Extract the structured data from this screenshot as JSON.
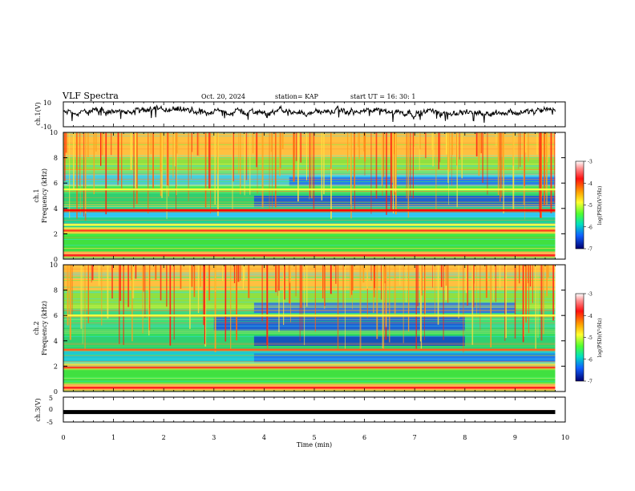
{
  "header": {
    "title": "VLF Spectra",
    "date": "Oct. 20, 2024",
    "station": "station= KAP",
    "start": "start  UT  =   16: 30: 1"
  },
  "colorbar": {
    "label": "log(PSD)(V²/Hz)",
    "ticks": [
      "-3",
      "-4",
      "-5",
      "-6",
      "-7"
    ],
    "colors": [
      "#8b0000",
      "#ff2020",
      "#ffa000",
      "#ffff40",
      "#70ff30",
      "#00e070",
      "#00d0ff",
      "#1060ff",
      "#0000c0",
      "#000060"
    ]
  },
  "chart_data": [
    {
      "type": "line",
      "panel": "ch1-waveform",
      "ylabel": "ch.1(V)",
      "yticks": [
        "10",
        "-10"
      ],
      "ylim": [
        -10,
        10
      ],
      "xlim": [
        0,
        10
      ],
      "description_of_trace": "noisy waveform centred near +2 V, fluctuating roughly between -5 and +8 V, ending at ~9.8 min"
    },
    {
      "type": "heatmap",
      "panel": "ch1-spectrogram",
      "ylabel": "ch.1\nFrequency (kHz)",
      "yticks": [
        "10",
        "8",
        "6",
        "4",
        "2",
        "0"
      ],
      "ylim": [
        0,
        10
      ],
      "xlim": [
        0,
        10
      ],
      "data_end_min": 9.8,
      "bands": [
        {
          "fmin": 0,
          "fmax": 0.6,
          "color": "#ffb050"
        },
        {
          "fmin": 0.6,
          "fmax": 2.0,
          "color": "#40e040"
        },
        {
          "fmin": 2.0,
          "fmax": 2.5,
          "color": "#e8e040"
        },
        {
          "fmin": 2.5,
          "fmax": 3.3,
          "color": "#20d090"
        },
        {
          "fmin": 3.3,
          "fmax": 3.7,
          "color": "#30c8f0"
        },
        {
          "fmin": 3.7,
          "fmax": 3.95,
          "color": "#ff2a1a"
        },
        {
          "fmin": 3.95,
          "fmax": 5.2,
          "color": "#30d070"
        },
        {
          "fmin": 5.2,
          "fmax": 5.8,
          "color": "#40e060"
        },
        {
          "fmin": 5.8,
          "fmax": 6.8,
          "color": "#50c8d0"
        },
        {
          "fmin": 6.8,
          "fmax": 8.0,
          "color": "#90e040"
        },
        {
          "fmin": 8.0,
          "fmax": 10.0,
          "color": "#ffc040"
        }
      ],
      "quiet_patches": [
        {
          "tmin": 3.8,
          "tmax": 9.8,
          "fmin": 4.1,
          "fmax": 5.0,
          "color": "#1850e0"
        },
        {
          "tmin": 4.5,
          "tmax": 9.8,
          "fmin": 5.8,
          "fmax": 6.5,
          "color": "#2070f0"
        }
      ],
      "lines": [
        {
          "f": 3.85,
          "color": "#ff0000"
        },
        {
          "f": 2.25,
          "color": "#ff4020"
        },
        {
          "f": 0.3,
          "color": "#ff2020"
        },
        {
          "f": 2.7,
          "color": "#ffff40"
        },
        {
          "f": 5.5,
          "color": "#ffff40"
        }
      ]
    },
    {
      "type": "heatmap",
      "panel": "ch2-spectrogram",
      "ylabel": "ch.2\nFrequency (kHz)",
      "yticks": [
        "10",
        "8",
        "6",
        "4",
        "2",
        "0"
      ],
      "ylim": [
        0,
        10
      ],
      "xlim": [
        0,
        10
      ],
      "data_end_min": 9.8,
      "bands": [
        {
          "fmin": 0,
          "fmax": 0.6,
          "color": "#ffb050"
        },
        {
          "fmin": 0.6,
          "fmax": 1.8,
          "color": "#40e040"
        },
        {
          "fmin": 1.8,
          "fmax": 2.2,
          "color": "#e8e040"
        },
        {
          "fmin": 2.2,
          "fmax": 3.2,
          "color": "#20c8d0"
        },
        {
          "fmin": 3.2,
          "fmax": 5.0,
          "color": "#30d070"
        },
        {
          "fmin": 5.0,
          "fmax": 6.5,
          "color": "#40d880"
        },
        {
          "fmin": 6.5,
          "fmax": 8.0,
          "color": "#90e040"
        },
        {
          "fmin": 8.0,
          "fmax": 10.0,
          "color": "#ffc040"
        }
      ],
      "quiet_patches": [
        {
          "tmin": 3.0,
          "tmax": 8.0,
          "fmin": 4.8,
          "fmax": 6.0,
          "color": "#1850e0"
        },
        {
          "tmin": 3.8,
          "tmax": 8.0,
          "fmin": 3.6,
          "fmax": 4.4,
          "color": "#1040c8"
        },
        {
          "tmin": 3.8,
          "tmax": 9.8,
          "fmin": 2.3,
          "fmax": 3.0,
          "color": "#2070f0"
        },
        {
          "tmin": 3.8,
          "tmax": 9.0,
          "fmin": 6.2,
          "fmax": 7.0,
          "color": "#2868f0"
        }
      ],
      "lines": [
        {
          "f": 1.9,
          "color": "#ff4020"
        },
        {
          "f": 3.3,
          "color": "#ff6020"
        },
        {
          "f": 0.3,
          "color": "#ff2020"
        },
        {
          "f": 6.0,
          "color": "#ffff40"
        }
      ]
    },
    {
      "type": "line",
      "panel": "ch3-waveform",
      "ylabel": "ch.3(V)",
      "yticks": [
        "5",
        "0",
        "-5"
      ],
      "ylim": [
        -5,
        5
      ],
      "xlim": [
        0,
        10
      ],
      "level": -1,
      "xlabel": "Time  (min)",
      "xticks": [
        "0",
        "1",
        "2",
        "3",
        "4",
        "5",
        "6",
        "7",
        "8",
        "9",
        "10"
      ]
    }
  ]
}
